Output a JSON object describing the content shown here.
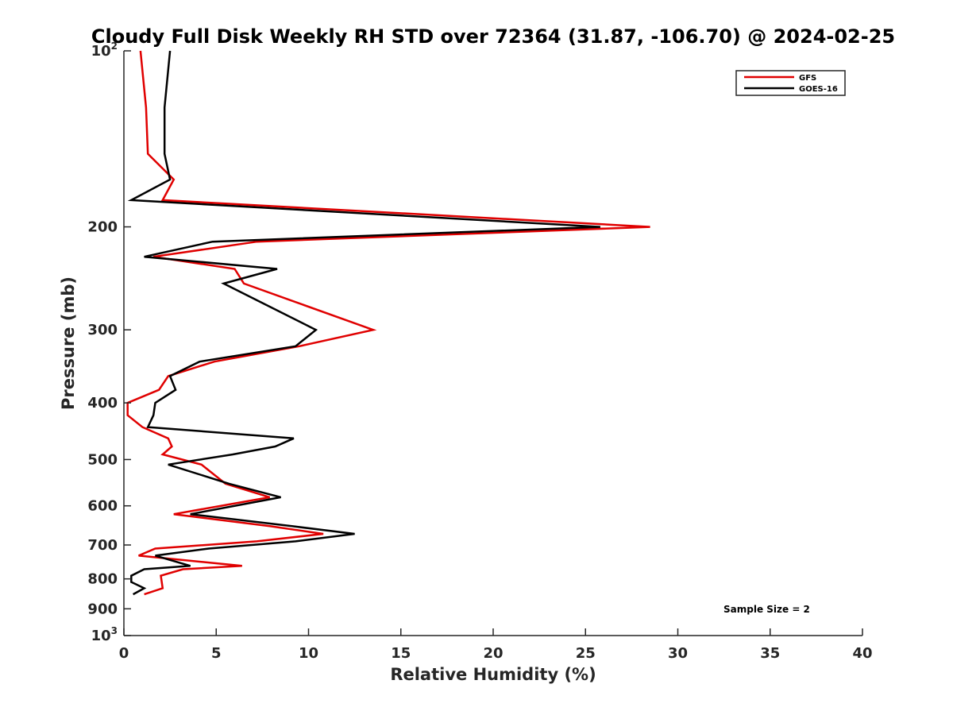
{
  "chart_data": {
    "type": "line",
    "title": "Cloudy Full Disk Weekly RH STD over 72364 (31.87, -106.70) @ 2024-02-25",
    "xlabel": "Relative Humidity (%)",
    "ylabel": "Pressure (mb)",
    "xlim": [
      0,
      40
    ],
    "ylim": [
      100,
      1000
    ],
    "y_scale": "log",
    "y_reversed": true,
    "grid": false,
    "legend_position": "top-right",
    "x_ticks": [
      {
        "value": 0,
        "label": "0"
      },
      {
        "value": 5,
        "label": "5"
      },
      {
        "value": 10,
        "label": "10"
      },
      {
        "value": 15,
        "label": "15"
      },
      {
        "value": 20,
        "label": "20"
      },
      {
        "value": 25,
        "label": "25"
      },
      {
        "value": 30,
        "label": "30"
      },
      {
        "value": 35,
        "label": "35"
      },
      {
        "value": 40,
        "label": "40"
      }
    ],
    "y_ticks": [
      {
        "value": 100,
        "label": "10",
        "sup": "2"
      },
      {
        "value": 200,
        "label": "200",
        "sup": ""
      },
      {
        "value": 300,
        "label": "300",
        "sup": ""
      },
      {
        "value": 400,
        "label": "400",
        "sup": ""
      },
      {
        "value": 500,
        "label": "500",
        "sup": ""
      },
      {
        "value": 600,
        "label": "600",
        "sup": ""
      },
      {
        "value": 700,
        "label": "700",
        "sup": ""
      },
      {
        "value": 800,
        "label": "800",
        "sup": ""
      },
      {
        "value": 900,
        "label": "900",
        "sup": ""
      },
      {
        "value": 1000,
        "label": "10",
        "sup": "3"
      }
    ],
    "series": [
      {
        "name": "GFS",
        "color": "#e00000",
        "x": [
          0.9,
          1.2,
          1.3,
          2.7,
          2.1,
          28.5,
          7.2,
          1.6,
          6.0,
          6.5,
          13.5,
          9.5,
          4.9,
          2.4,
          1.9,
          0.2,
          0.2,
          1.0,
          2.4,
          2.6,
          2.1,
          4.2,
          5.5,
          7.9,
          2.7,
          7.9,
          10.8,
          7.2,
          1.7,
          0.8,
          6.4,
          3.2,
          2.0,
          2.1,
          1.1
        ],
        "y": [
          100,
          125,
          150,
          166,
          180,
          200,
          212,
          225,
          236,
          250,
          300,
          320,
          340,
          360,
          380,
          400,
          420,
          440,
          460,
          475,
          490,
          510,
          550,
          580,
          620,
          650,
          670,
          690,
          710,
          730,
          760,
          770,
          790,
          830,
          850
        ]
      },
      {
        "name": "GOES-16",
        "color": "#000000",
        "x": [
          2.5,
          2.2,
          2.2,
          2.5,
          0.4,
          25.8,
          4.8,
          1.1,
          8.3,
          5.4,
          10.4,
          9.3,
          4.1,
          2.5,
          2.8,
          1.7,
          1.6,
          1.3,
          9.2,
          8.2,
          5.9,
          2.4,
          5.7,
          8.5,
          3.6,
          9.1,
          12.5,
          9.3,
          4.6,
          1.7,
          3.6,
          1.1,
          0.4,
          0.4,
          1.1,
          0.5
        ],
        "y": [
          100,
          125,
          150,
          166,
          180,
          200,
          212,
          225,
          236,
          250,
          300,
          320,
          340,
          360,
          380,
          400,
          420,
          440,
          460,
          475,
          490,
          510,
          550,
          580,
          620,
          650,
          670,
          690,
          710,
          730,
          760,
          770,
          790,
          810,
          830,
          850
        ]
      }
    ],
    "annotation": "Sample Size = 2"
  }
}
